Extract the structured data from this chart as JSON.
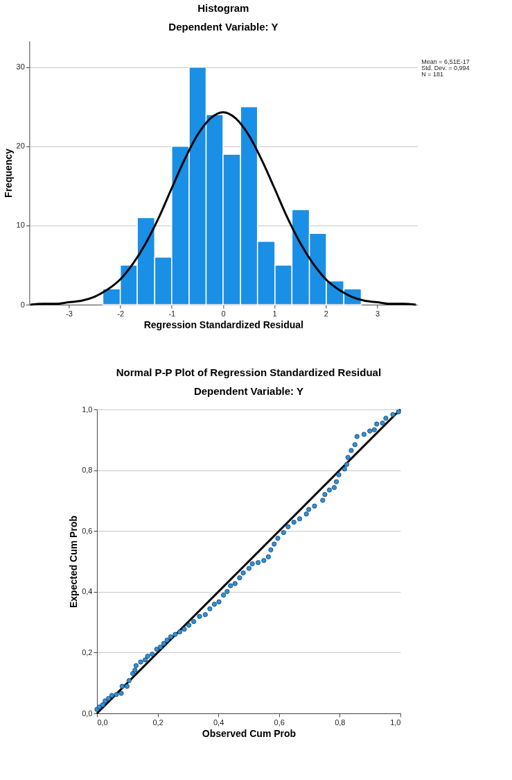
{
  "chart_data": [
    {
      "type": "histogram",
      "title": "Histogram",
      "subtitle": "Dependent Variable: Y",
      "xlabel": "Regression Standardized Residual",
      "ylabel": "Frequency",
      "xlim": [
        -3.77,
        3.78
      ],
      "xticks": [
        -3,
        -2,
        -1,
        0,
        1,
        2,
        3
      ],
      "ylim": [
        0,
        33.3
      ],
      "yticks": [
        0,
        10,
        20,
        30
      ],
      "grid": "y",
      "annotations": [
        "Mean = 6,51E-17",
        "Std. Dev. = 0,994",
        "N = 181"
      ],
      "series": [
        {
          "color": "#1a8fe6",
          "bins": [
            -2.34,
            -2.0,
            -1.67,
            -1.33,
            -1.0,
            -0.66,
            -0.33,
            0.0,
            0.34,
            0.67,
            1.01,
            1.34,
            1.68,
            2.01,
            2.35,
            2.69
          ],
          "values": [
            2,
            5,
            11,
            6,
            20,
            30,
            24,
            19,
            25,
            8,
            5,
            12,
            9,
            3,
            2
          ]
        },
        {
          "type": "line",
          "line_style": "solid",
          "color": "#000000",
          "x": [
            -3.75,
            -3.5,
            -3.25,
            -3.0,
            -2.75,
            -2.5,
            -2.25,
            -2.0,
            -1.75,
            -1.5,
            -1.25,
            -1.0,
            -0.75,
            -0.5,
            -0.25,
            0,
            0.25,
            0.5,
            0.75,
            1.0,
            1.25,
            1.5,
            1.75,
            2.0,
            2.25,
            2.5,
            2.75,
            3.0,
            3.25,
            3.5,
            3.75
          ],
          "values": [
            0,
            0.1,
            0.1,
            0.3,
            0.5,
            1.0,
            1.9,
            3.2,
            5.2,
            7.8,
            11.0,
            14.7,
            18.3,
            21.4,
            23.5,
            24.3,
            23.5,
            21.4,
            18.3,
            14.7,
            11.0,
            7.8,
            5.2,
            3.2,
            1.9,
            1.0,
            0.5,
            0.3,
            0.1,
            0.1,
            0
          ]
        }
      ]
    },
    {
      "type": "scatter",
      "title": "Normal P-P Plot of Regression Standardized Residual",
      "subtitle": "Dependent Variable: Y",
      "xlabel": "Observed Cum Prob",
      "ylabel": "Expected Cum Prob",
      "xlim": [
        0,
        1
      ],
      "xticks": [
        {
          "value": 0,
          "label": "0,0"
        },
        {
          "value": 0.2,
          "label": "0,2"
        },
        {
          "value": 0.4,
          "label": "0,4"
        },
        {
          "value": 0.6,
          "label": "0,6"
        },
        {
          "value": 0.8,
          "label": "0,8"
        },
        {
          "value": 1,
          "label": "1,0"
        }
      ],
      "ylim": [
        0,
        1
      ],
      "yticks": [
        {
          "value": 0,
          "label": "0,0"
        },
        {
          "value": 0.2,
          "label": "0,2"
        },
        {
          "value": 0.4,
          "label": "0,4"
        },
        {
          "value": 0.6,
          "label": "0,6"
        },
        {
          "value": 0.8,
          "label": "0,8"
        },
        {
          "value": 1,
          "label": "1,0"
        }
      ],
      "grid": "y",
      "series": [
        {
          "type": "line",
          "line_style": "solid",
          "color": "#000000",
          "x": [
            0,
            1
          ],
          "values": [
            0,
            1
          ]
        },
        {
          "marker": "circle",
          "color": "#2a93dc",
          "x": [
            0,
            0.008,
            0.019,
            0.027,
            0.038,
            0.049,
            0.064,
            0.08,
            0.083,
            0.099,
            0.106,
            0.118,
            0.125,
            0.129,
            0.144,
            0.159,
            0.167,
            0.182,
            0.197,
            0.209,
            0.22,
            0.231,
            0.243,
            0.258,
            0.273,
            0.288,
            0.303,
            0.319,
            0.338,
            0.357,
            0.372,
            0.387,
            0.402,
            0.417,
            0.429,
            0.44,
            0.455,
            0.47,
            0.482,
            0.501,
            0.512,
            0.531,
            0.55,
            0.565,
            0.573,
            0.584,
            0.596,
            0.615,
            0.63,
            0.649,
            0.668,
            0.69,
            0.698,
            0.717,
            0.744,
            0.751,
            0.766,
            0.782,
            0.789,
            0.797,
            0.816,
            0.823,
            0.827,
            0.838,
            0.85,
            0.857,
            0.88,
            0.899,
            0.914,
            0.922,
            0.941,
            0.952,
            0.975,
            0.994
          ],
          "values": [
            0.013,
            0.021,
            0.028,
            0.041,
            0.049,
            0.059,
            0.062,
            0.066,
            0.089,
            0.089,
            0.108,
            0.131,
            0.142,
            0.157,
            0.169,
            0.176,
            0.188,
            0.195,
            0.211,
            0.218,
            0.23,
            0.241,
            0.252,
            0.26,
            0.268,
            0.277,
            0.29,
            0.302,
            0.319,
            0.325,
            0.344,
            0.359,
            0.367,
            0.389,
            0.401,
            0.42,
            0.427,
            0.446,
            0.462,
            0.477,
            0.492,
            0.496,
            0.503,
            0.515,
            0.538,
            0.557,
            0.576,
            0.595,
            0.614,
            0.629,
            0.64,
            0.656,
            0.671,
            0.682,
            0.701,
            0.72,
            0.735,
            0.743,
            0.762,
            0.785,
            0.804,
            0.819,
            0.842,
            0.865,
            0.884,
            0.911,
            0.918,
            0.929,
            0.933,
            0.952,
            0.955,
            0.971,
            0.983,
            0.992
          ]
        }
      ]
    }
  ]
}
